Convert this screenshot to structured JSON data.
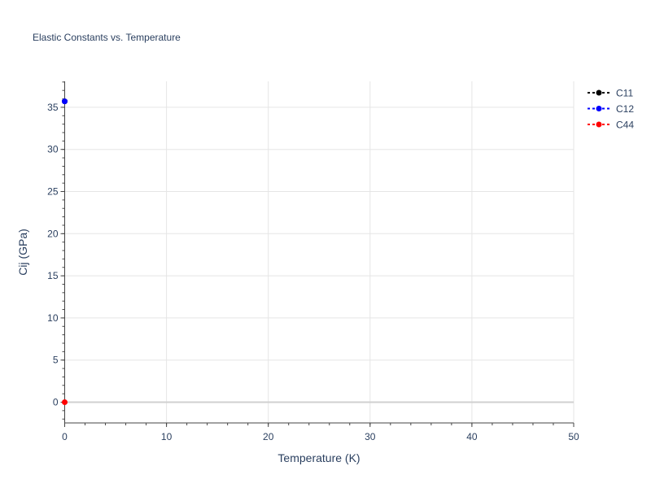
{
  "chart_data": {
    "type": "line",
    "title": "Elastic Constants vs. Temperature",
    "xlabel": "Temperature (K)",
    "ylabel": "Cij (GPa)",
    "xlim": [
      0,
      50
    ],
    "ylim": [
      -2.46,
      38.08
    ],
    "xticks": [
      0,
      10,
      20,
      30,
      40,
      50
    ],
    "yticks": [
      0,
      5,
      10,
      15,
      20,
      25,
      30,
      35
    ],
    "grid": true,
    "legend_position": "top-right",
    "series": [
      {
        "name": "C11",
        "color": "#000000",
        "x": [
          0
        ],
        "y": [
          35.7
        ]
      },
      {
        "name": "C12",
        "color": "#0000ff",
        "x": [
          0
        ],
        "y": [
          35.7
        ]
      },
      {
        "name": "C44",
        "color": "#ff0000",
        "x": [
          0
        ],
        "y": [
          0
        ]
      }
    ]
  }
}
